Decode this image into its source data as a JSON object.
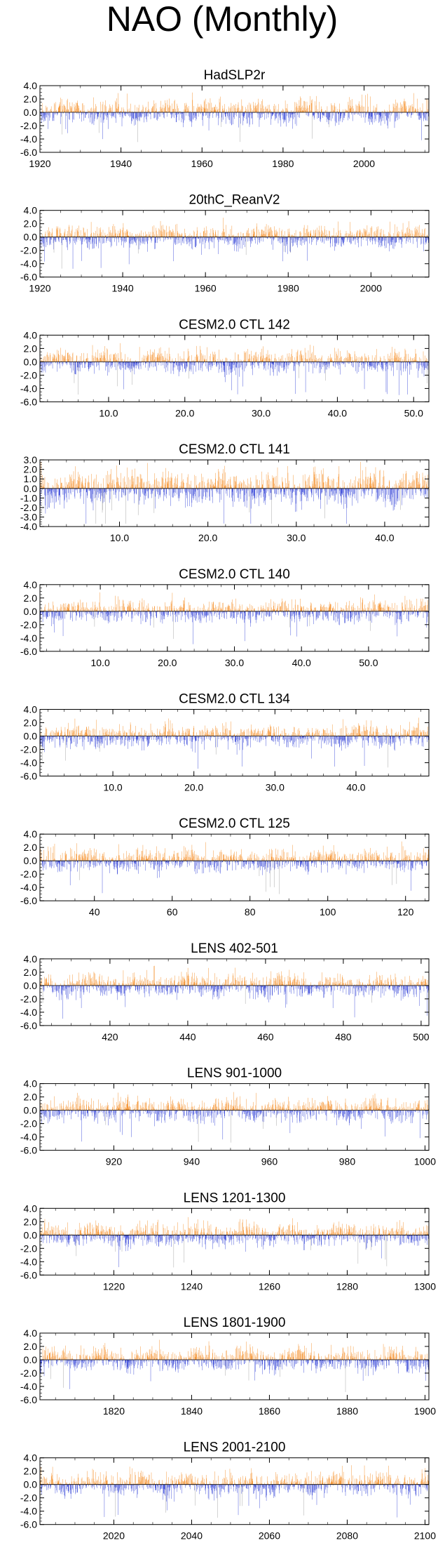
{
  "title": "NAO (Monthly)",
  "colors": {
    "positive": "#f58a1f",
    "negative": "#2f3fd6",
    "zero_line": "#000000",
    "axis": "#000000",
    "grey": "#9a9a9a"
  },
  "chart_data": [
    {
      "type": "bar",
      "title": "HadSLP2r",
      "ylim": [
        -6,
        4
      ],
      "yticks": [
        "4.0",
        "2.0",
        "0.0",
        "-2.0",
        "-4.0",
        "-6.0"
      ],
      "xlim": [
        1920,
        2016
      ],
      "xticks": [
        1920,
        1940,
        1960,
        1980,
        2000
      ],
      "xtick_labels": [
        "1920",
        "1940",
        "1960",
        "1980",
        "2000"
      ],
      "seed": 11
    },
    {
      "type": "bar",
      "title": "20thC_ReanV2",
      "ylim": [
        -6,
        4
      ],
      "yticks": [
        "4.0",
        "2.0",
        "0.0",
        "-2.0",
        "-4.0",
        "-6.0"
      ],
      "xlim": [
        1920,
        2014
      ],
      "xticks": [
        1920,
        1940,
        1960,
        1980,
        2000
      ],
      "xtick_labels": [
        "1920",
        "1940",
        "1960",
        "1980",
        "2000"
      ],
      "seed": 23
    },
    {
      "type": "bar",
      "title": "CESM2.0 CTL 142",
      "ylim": [
        -6,
        4
      ],
      "yticks": [
        "4.0",
        "2.0",
        "0.0",
        "-2.0",
        "-4.0",
        "-6.0"
      ],
      "xlim": [
        1,
        52
      ],
      "xticks": [
        10,
        20,
        30,
        40,
        50
      ],
      "xtick_labels": [
        "10.0",
        "20.0",
        "30.0",
        "40.0",
        "50.0"
      ],
      "seed": 37
    },
    {
      "type": "bar",
      "title": "CESM2.0 CTL 141",
      "ylim": [
        -4,
        3
      ],
      "yticks": [
        "3.0",
        "2.0",
        "1.0",
        "0.0",
        "-1.0",
        "-2.0",
        "-3.0",
        "-4.0"
      ],
      "xlim": [
        1,
        45
      ],
      "xticks": [
        10,
        20,
        30,
        40
      ],
      "xtick_labels": [
        "10.0",
        "20.0",
        "30.0",
        "40.0"
      ],
      "seed": 41
    },
    {
      "type": "bar",
      "title": "CESM2.0 CTL 140",
      "ylim": [
        -6,
        4
      ],
      "yticks": [
        "4.0",
        "2.0",
        "0.0",
        "-2.0",
        "-4.0",
        "-6.0"
      ],
      "xlim": [
        1,
        59
      ],
      "xticks": [
        10,
        20,
        30,
        40,
        50
      ],
      "xtick_labels": [
        "10.0",
        "20.0",
        "30.0",
        "40.0",
        "50.0"
      ],
      "seed": 53
    },
    {
      "type": "bar",
      "title": "CESM2.0 CTL 134",
      "ylim": [
        -6,
        4
      ],
      "yticks": [
        "4.0",
        "2.0",
        "0.0",
        "-2.0",
        "-4.0",
        "-6.0"
      ],
      "xlim": [
        1,
        49
      ],
      "xticks": [
        10,
        20,
        30,
        40
      ],
      "xtick_labels": [
        "10.0",
        "20.0",
        "30.0",
        "40.0"
      ],
      "seed": 67
    },
    {
      "type": "bar",
      "title": "CESM2.0 CTL 125",
      "ylim": [
        -6,
        4
      ],
      "yticks": [
        "4.0",
        "2.0",
        "0.0",
        "-2.0",
        "-4.0",
        "-6.0"
      ],
      "xlim": [
        26,
        126
      ],
      "xticks": [
        40,
        60,
        80,
        100,
        120
      ],
      "xtick_labels": [
        "40",
        "60",
        "80",
        "100",
        "120"
      ],
      "seed": 71
    },
    {
      "type": "bar",
      "title": "LENS 402-501",
      "ylim": [
        -6,
        4
      ],
      "yticks": [
        "4.0",
        "2.0",
        "0.0",
        "-2.0",
        "-4.0",
        "-6.0"
      ],
      "xlim": [
        402,
        502
      ],
      "xticks": [
        420,
        440,
        460,
        480,
        500
      ],
      "xtick_labels": [
        "420",
        "440",
        "460",
        "480",
        "500"
      ],
      "seed": 83
    },
    {
      "type": "bar",
      "title": "LENS 901-1000",
      "ylim": [
        -6,
        4
      ],
      "yticks": [
        "4.0",
        "2.0",
        "0.0",
        "-2.0",
        "-4.0",
        "-6.0"
      ],
      "xlim": [
        901,
        1001
      ],
      "xticks": [
        920,
        940,
        960,
        980,
        1000
      ],
      "xtick_labels": [
        "920",
        "940",
        "960",
        "980",
        "1000"
      ],
      "seed": 97
    },
    {
      "type": "bar",
      "title": "LENS 1201-1300",
      "ylim": [
        -6,
        4
      ],
      "yticks": [
        "4.0",
        "2.0",
        "0.0",
        "-2.0",
        "-4.0",
        "-6.0"
      ],
      "xlim": [
        1201,
        1301
      ],
      "xticks": [
        1220,
        1240,
        1260,
        1280,
        1300
      ],
      "xtick_labels": [
        "1220",
        "1240",
        "1260",
        "1280",
        "1300"
      ],
      "seed": 101
    },
    {
      "type": "bar",
      "title": "LENS 1801-1900",
      "ylim": [
        -6,
        4
      ],
      "yticks": [
        "4.0",
        "2.0",
        "0.0",
        "-2.0",
        "-4.0",
        "-6.0"
      ],
      "xlim": [
        1801,
        1901
      ],
      "xticks": [
        1820,
        1840,
        1860,
        1880,
        1900
      ],
      "xtick_labels": [
        "1820",
        "1840",
        "1860",
        "1880",
        "1900"
      ],
      "seed": 113
    },
    {
      "type": "bar",
      "title": "LENS 2001-2100",
      "ylim": [
        -6,
        4
      ],
      "yticks": [
        "4.0",
        "2.0",
        "0.0",
        "-2.0",
        "-4.0",
        "-6.0"
      ],
      "xlim": [
        2001,
        2101
      ],
      "xticks": [
        2020,
        2040,
        2060,
        2080,
        2100
      ],
      "xtick_labels": [
        "2020",
        "2040",
        "2060",
        "2080",
        "2100"
      ],
      "seed": 127
    }
  ]
}
